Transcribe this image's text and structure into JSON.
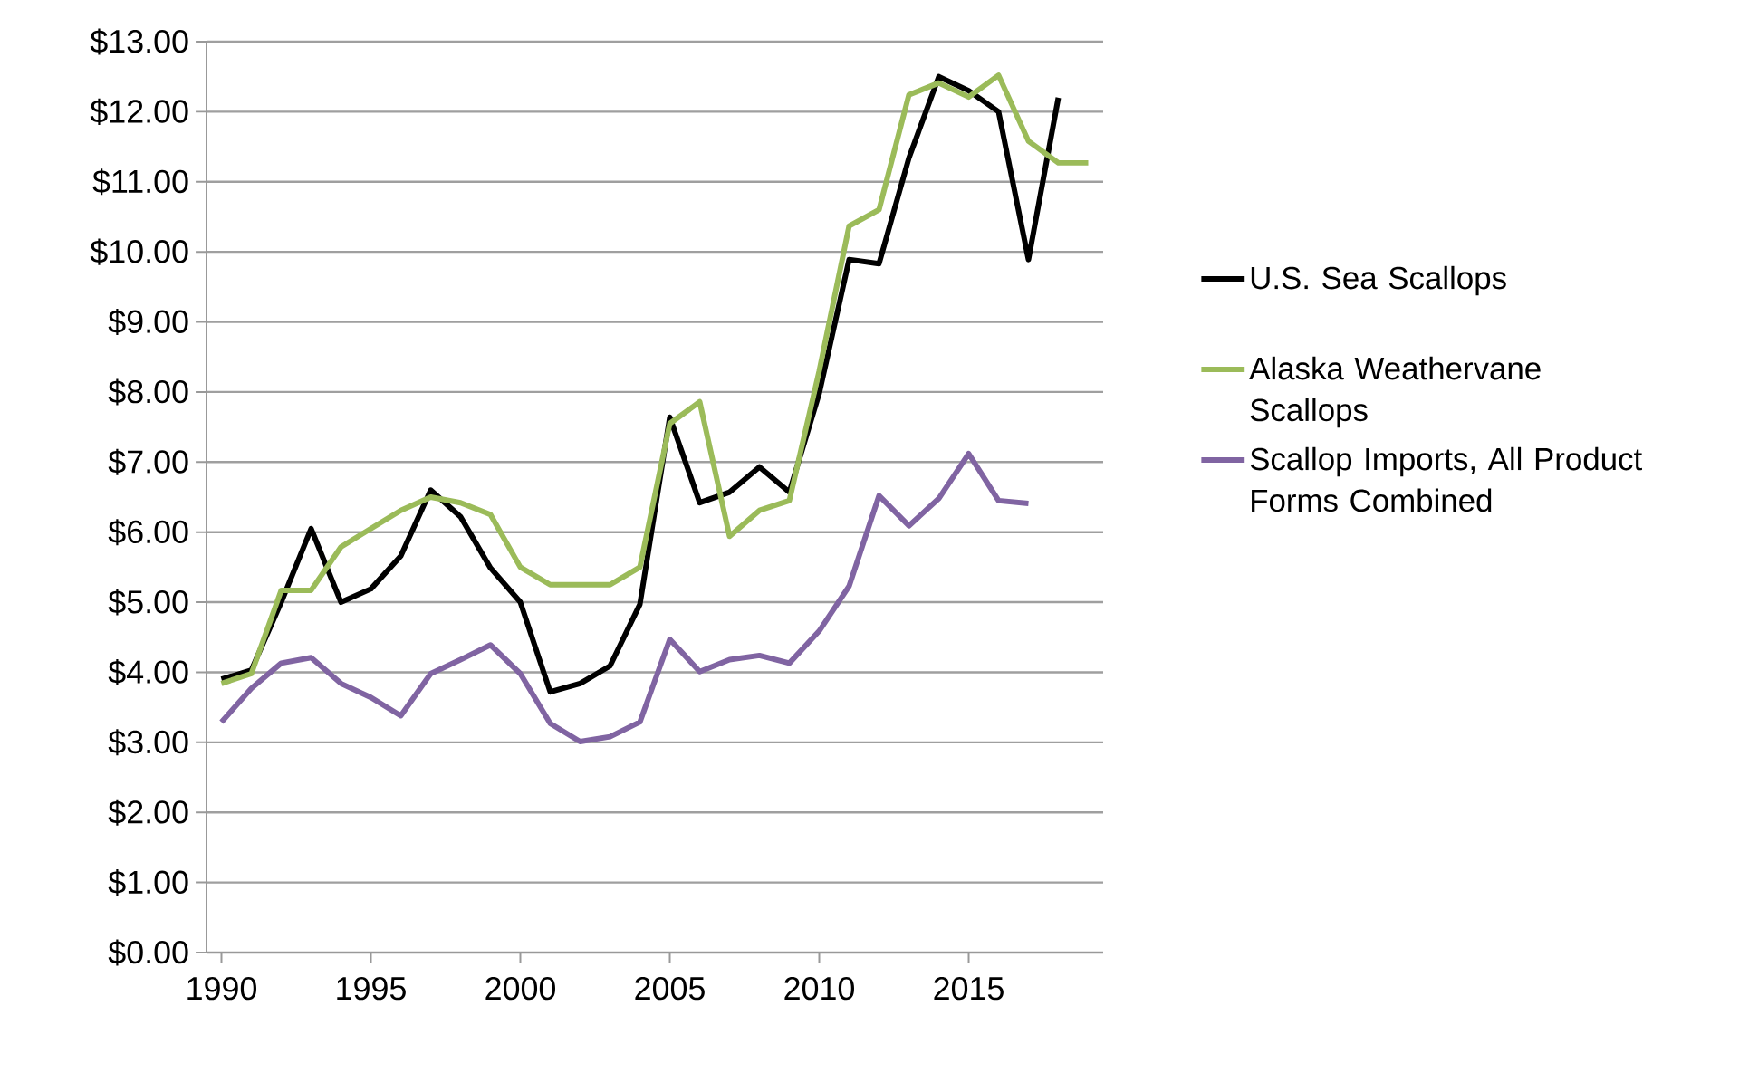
{
  "chart_data": {
    "type": "line",
    "x": [
      1990,
      1991,
      1992,
      1993,
      1994,
      1995,
      1996,
      1997,
      1998,
      1999,
      2000,
      2001,
      2002,
      2003,
      2004,
      2005,
      2006,
      2007,
      2008,
      2009,
      2010,
      2011,
      2012,
      2013,
      2014,
      2015,
      2016,
      2017,
      2018,
      2019
    ],
    "series": [
      {
        "name": "U.S. Sea Scallops",
        "color": "#000000",
        "values": [
          3.9,
          4.03,
          5.0,
          6.05,
          5.0,
          5.19,
          5.66,
          6.6,
          6.22,
          5.49,
          5.0,
          3.72,
          3.84,
          4.09,
          4.97,
          7.64,
          6.42,
          6.57,
          6.93,
          6.57,
          7.98,
          9.89,
          9.83,
          11.34,
          12.5,
          12.3,
          12.0,
          9.89,
          12.2,
          null
        ]
      },
      {
        "name": "Alaska Weathervane Scallops",
        "color": "#9bbb59",
        "values": [
          3.84,
          3.98,
          5.17,
          5.17,
          5.79,
          6.05,
          6.31,
          6.5,
          6.42,
          6.25,
          5.5,
          5.25,
          5.25,
          5.25,
          5.5,
          7.55,
          7.86,
          5.94,
          6.31,
          6.45,
          8.3,
          10.37,
          10.6,
          12.24,
          12.41,
          12.21,
          12.52,
          11.58,
          11.27,
          11.27
        ]
      },
      {
        "name": "Scallop Imports, All Product Forms Combined",
        "color": "#8064a2",
        "values": [
          3.29,
          3.77,
          4.13,
          4.21,
          3.84,
          3.64,
          3.38,
          3.98,
          4.18,
          4.39,
          3.98,
          3.27,
          3.01,
          3.08,
          3.29,
          4.47,
          4.01,
          4.18,
          4.24,
          4.13,
          4.59,
          5.23,
          6.52,
          6.09,
          6.48,
          7.12,
          6.45,
          6.41,
          null,
          null
        ]
      }
    ],
    "xlim": [
      1989.5,
      2019.5
    ],
    "xticks": [
      1990,
      1995,
      2000,
      2005,
      2010,
      2015
    ],
    "ylim": [
      0,
      13
    ],
    "yticks": [
      {
        "value": 0,
        "label": "$0.00"
      },
      {
        "value": 1,
        "label": "$1.00"
      },
      {
        "value": 2,
        "label": "$2.00"
      },
      {
        "value": 3,
        "label": "$3.00"
      },
      {
        "value": 4,
        "label": "$4.00"
      },
      {
        "value": 5,
        "label": "$5.00"
      },
      {
        "value": 6,
        "label": "$6.00"
      },
      {
        "value": 7,
        "label": "$7.00"
      },
      {
        "value": 8,
        "label": "$8.00"
      },
      {
        "value": 9,
        "label": "$9.00"
      },
      {
        "value": 10,
        "label": "$10.00"
      },
      {
        "value": 11,
        "label": "$11.00"
      },
      {
        "value": 12,
        "label": "$12.00"
      },
      {
        "value": 13,
        "label": "$13.00"
      }
    ],
    "grid": "y",
    "legend": "right",
    "marker": "none",
    "line_style": "solid"
  }
}
